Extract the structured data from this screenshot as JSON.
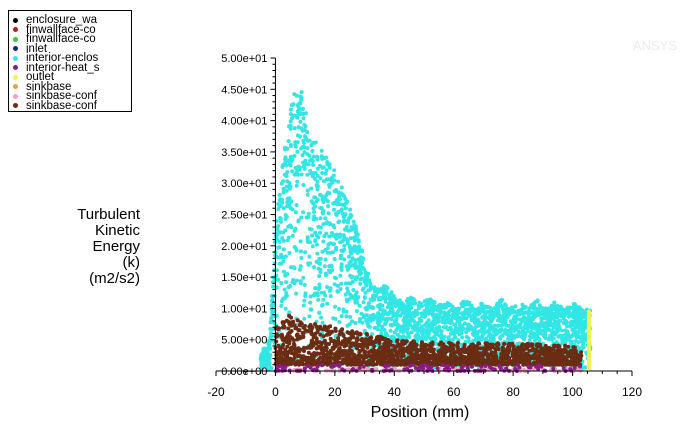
{
  "legend": [
    {
      "label": "enclosure_wa",
      "color": "#000000"
    },
    {
      "label": "finwallface-co",
      "color": "#b22222"
    },
    {
      "label": "finwallface-co",
      "color": "#33cc33"
    },
    {
      "label": "inlet",
      "color": "#1a237e"
    },
    {
      "label": "interior-enclos",
      "color": "#33e6e6"
    },
    {
      "label": "interior-heat_s",
      "color": "#8b1a8b"
    },
    {
      "label": "outlet",
      "color": "#f2f24d"
    },
    {
      "label": "sinkbase",
      "color": "#e8a040"
    },
    {
      "label": "sinkbase-conf",
      "color": "#f0a0c0"
    },
    {
      "label": "sinkbase-conf",
      "color": "#6b2c14"
    }
  ],
  "ylabel_lines": [
    "Turbulent",
    "Kinetic",
    "Energy",
    "(k)",
    "(m2/s2)"
  ],
  "watermark": "ANSYS",
  "chart_data": {
    "type": "scatter",
    "xlabel": "Position (mm)",
    "ylabel": "Turbulent Kinetic Energy (k) (m2/s2)",
    "xlim": [
      -20,
      120
    ],
    "ylim": [
      0,
      50
    ],
    "x_ticks": [
      -20,
      0,
      20,
      40,
      60,
      80,
      100,
      120
    ],
    "y_ticks": [
      {
        "value": 0,
        "label": "0.00e+00"
      },
      {
        "value": 5,
        "label": "5.00e+00"
      },
      {
        "value": 10,
        "label": "1.00e+01"
      },
      {
        "value": 15,
        "label": "1.50e+01"
      },
      {
        "value": 20,
        "label": "2.00e+01"
      },
      {
        "value": 25,
        "label": "2.50e+01"
      },
      {
        "value": 30,
        "label": "3.00e+01"
      },
      {
        "value": 35,
        "label": "3.50e+01"
      },
      {
        "value": 40,
        "label": "4.00e+01"
      },
      {
        "value": 45,
        "label": "4.50e+01"
      },
      {
        "value": 50,
        "label": "5.00e+01"
      }
    ],
    "series": [
      {
        "name": "interior-enclos",
        "color": "#33e6e6",
        "x_range": [
          -5,
          106
        ],
        "upper_envelope": [
          [
            -5,
            3
          ],
          [
            -2,
            5
          ],
          [
            0,
            22
          ],
          [
            2,
            32
          ],
          [
            5,
            42
          ],
          [
            7,
            46
          ],
          [
            9,
            45
          ],
          [
            11,
            39
          ],
          [
            13,
            37
          ],
          [
            16,
            35
          ],
          [
            19,
            33
          ],
          [
            22,
            30
          ],
          [
            25,
            26
          ],
          [
            28,
            22
          ],
          [
            31,
            16
          ],
          [
            34,
            13
          ],
          [
            37,
            14
          ],
          [
            40,
            12
          ],
          [
            43,
            11
          ],
          [
            46,
            12
          ],
          [
            49,
            11
          ],
          [
            52,
            11.5
          ],
          [
            55,
            10.5
          ],
          [
            58,
            11
          ],
          [
            61,
            10
          ],
          [
            64,
            11.5
          ],
          [
            67,
            10
          ],
          [
            70,
            11
          ],
          [
            73,
            10
          ],
          [
            76,
            11.5
          ],
          [
            79,
            10
          ],
          [
            82,
            11
          ],
          [
            85,
            10
          ],
          [
            88,
            11.5
          ],
          [
            91,
            10
          ],
          [
            94,
            11
          ],
          [
            97,
            10
          ],
          [
            100,
            11
          ],
          [
            103,
            10
          ],
          [
            106,
            10
          ]
        ]
      },
      {
        "name": "sinkbase-conf",
        "color": "#6b2c14",
        "x_range": [
          0,
          103
        ],
        "band": [
          [
            0,
            1,
            7
          ],
          [
            5,
            1,
            9
          ],
          [
            10,
            1,
            8
          ],
          [
            20,
            1,
            7
          ],
          [
            40,
            1,
            5
          ],
          [
            60,
            1,
            4.5
          ],
          [
            80,
            1,
            4.5
          ],
          [
            100,
            1,
            4
          ],
          [
            103,
            1,
            3
          ]
        ]
      },
      {
        "name": "sinkbase-conf",
        "color": "#f0a0c0",
        "x_range": [
          0,
          103
        ],
        "band": [
          [
            0,
            0,
            0.4
          ],
          [
            103,
            0,
            0.4
          ]
        ]
      },
      {
        "name": "outlet",
        "color": "#f2f24d",
        "points": [
          [
            105.5,
            0.5
          ],
          [
            105.5,
            9.5
          ]
        ]
      },
      {
        "name": "interior-heat_s",
        "color": "#8b1a8b",
        "band": [
          [
            0,
            0,
            1
          ],
          [
            103,
            0,
            1
          ]
        ]
      }
    ]
  }
}
